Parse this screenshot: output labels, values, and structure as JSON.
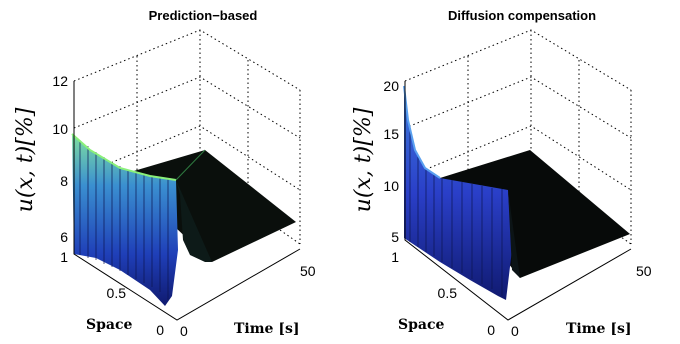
{
  "chart_data": [
    {
      "type": "surface",
      "title": "Prediction−based",
      "xlabel": "Space",
      "ylabel": "Time [s]",
      "zlabel": "u(x, t)[%]",
      "xlim": [
        0,
        1
      ],
      "ylim": [
        0,
        50
      ],
      "zlim": [
        6,
        12
      ],
      "x_ticks": [
        "1",
        "0.5",
        "0"
      ],
      "y_ticks": [
        "0",
        "50"
      ],
      "z_ticks": [
        "12",
        "10",
        "8",
        "6"
      ],
      "surface_values": {
        "initial_at_space_1": 10,
        "initial_at_space_0": 6.5,
        "steady_state": 7.5,
        "undershoot_min": 5.8
      }
    },
    {
      "type": "surface",
      "title": "Diffusion compensation",
      "xlabel": "Space",
      "ylabel": "Time [s]",
      "zlabel": "u(x, t)[%]",
      "xlim": [
        0,
        1
      ],
      "ylim": [
        0,
        50
      ],
      "zlim": [
        5,
        20
      ],
      "x_ticks": [
        "1",
        "0.5",
        "0"
      ],
      "y_ticks": [
        "0",
        "50"
      ],
      "z_ticks": [
        "20",
        "15",
        "10",
        "5"
      ],
      "surface_values": {
        "initial_at_space_1": 20,
        "initial_at_space_0": 5.5,
        "steady_state": 7,
        "undershoot_min": 4.2
      }
    }
  ]
}
